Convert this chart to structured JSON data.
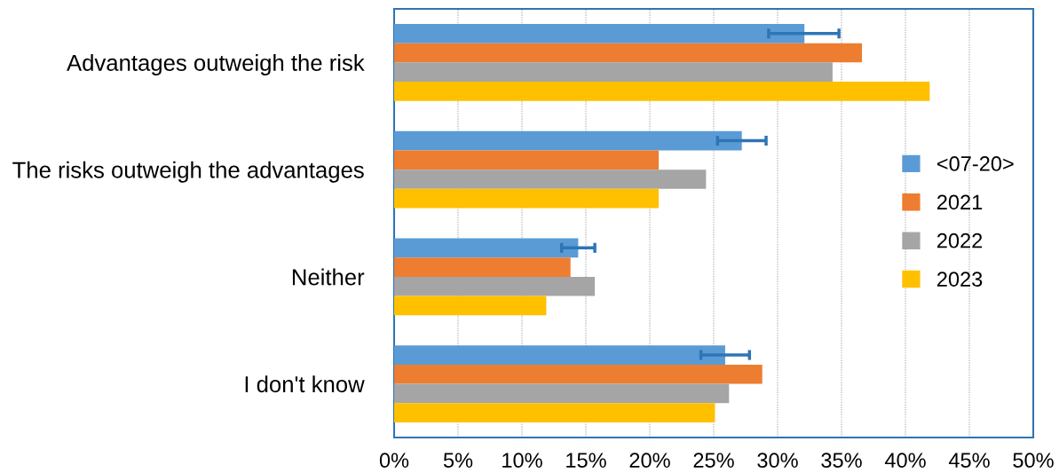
{
  "chart_data": {
    "type": "bar",
    "orientation": "horizontal",
    "categories": [
      "Advantages outweigh the risk",
      "The risks outweigh the advantages",
      "Neither",
      "I don't know"
    ],
    "series": [
      {
        "name": "<07-20>",
        "color": "#5b9bd5",
        "values": [
          32.1,
          27.2,
          14.4,
          25.9
        ],
        "errors": [
          [
            29.3,
            34.8
          ],
          [
            25.3,
            29.1
          ],
          [
            13.1,
            15.7
          ],
          [
            24.0,
            27.8
          ]
        ]
      },
      {
        "name": "2021",
        "color": "#ed7d31",
        "values": [
          36.6,
          20.7,
          13.8,
          28.8
        ]
      },
      {
        "name": "2022",
        "color": "#a5a5a5",
        "values": [
          34.3,
          24.4,
          15.7,
          26.2
        ]
      },
      {
        "name": "2023",
        "color": "#ffc000",
        "values": [
          41.9,
          20.7,
          11.9,
          25.1
        ]
      }
    ],
    "xlim": [
      0,
      50
    ],
    "xticks": [
      {
        "value": 0,
        "label": "0%"
      },
      {
        "value": 5,
        "label": "5%"
      },
      {
        "value": 10,
        "label": "10%"
      },
      {
        "value": 15,
        "label": "15%"
      },
      {
        "value": 20,
        "label": "20%"
      },
      {
        "value": 25,
        "label": "25%"
      },
      {
        "value": 30,
        "label": "30%"
      },
      {
        "value": 35,
        "label": "35%"
      },
      {
        "value": 40,
        "label": "40%"
      },
      {
        "value": 45,
        "label": "45%"
      },
      {
        "value": 50,
        "label": "50%"
      }
    ],
    "grid": "x",
    "legend": "center right"
  }
}
